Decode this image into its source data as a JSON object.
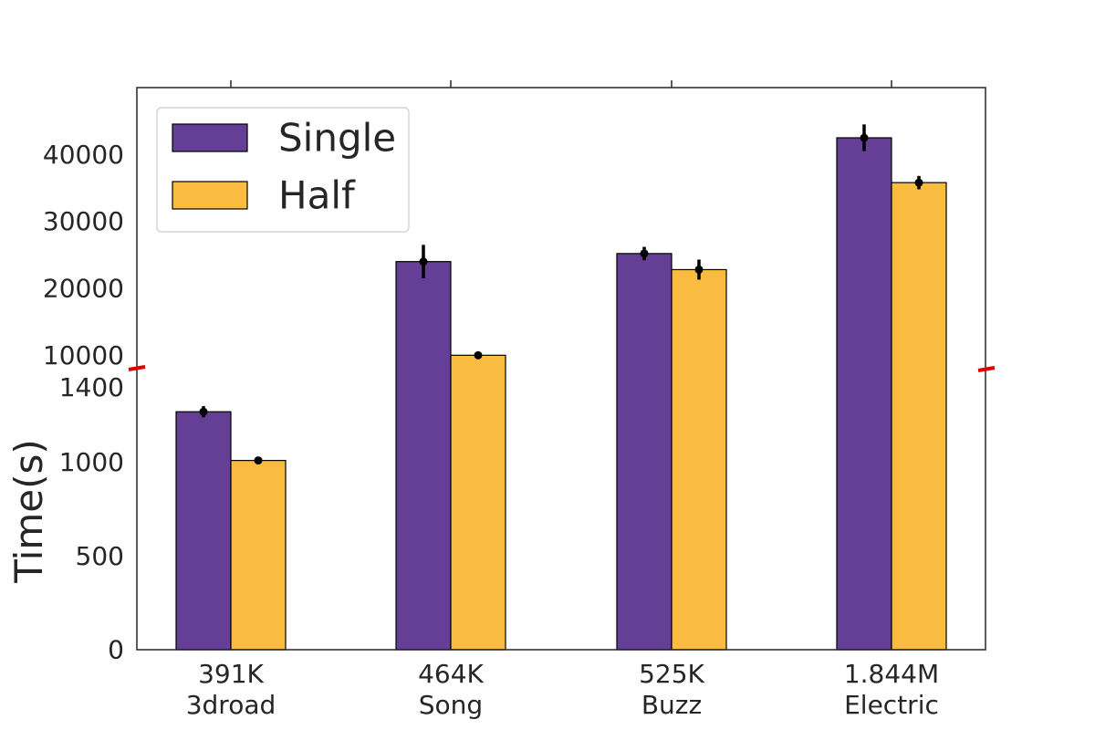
{
  "chart_data": {
    "type": "bar",
    "title": "",
    "xlabel": "",
    "ylabel": "Time(s)",
    "categories": [
      {
        "size": "391K",
        "name": "3droad"
      },
      {
        "size": "464K",
        "name": "Song"
      },
      {
        "size": "525K",
        "name": "Buzz"
      },
      {
        "size": "1.844M",
        "name": "Electric"
      }
    ],
    "series": [
      {
        "name": "Single",
        "color": "#643f95",
        "values": [
          1270,
          24000,
          25200,
          42500
        ],
        "errors": [
          30,
          2500,
          1000,
          2000
        ]
      },
      {
        "name": "Half",
        "color": "#f9bc40",
        "values": [
          1010,
          10000,
          22800,
          35800
        ],
        "errors": [
          0,
          0,
          1500,
          1000
        ]
      }
    ],
    "y_axis": {
      "broken": true,
      "lower_segment": {
        "range": [
          0,
          1500
        ],
        "ticks": [
          0,
          500,
          1000,
          1400
        ]
      },
      "upper_segment": {
        "range": [
          8000,
          50000
        ],
        "ticks": [
          10000,
          20000,
          30000,
          40000
        ]
      }
    },
    "legend_position": "top-left",
    "grid": false,
    "break_marker_color": "#e00000"
  }
}
